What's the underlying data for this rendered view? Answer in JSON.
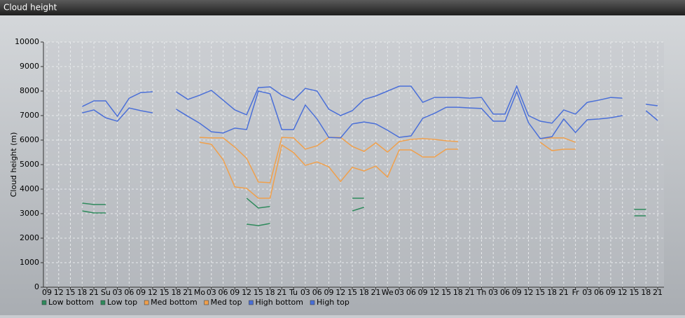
{
  "chart_data": {
    "type": "line",
    "title": "Cloud height",
    "y_label": "Cloud height (m)",
    "categories": [
      "09",
      "12",
      "15",
      "18",
      "21",
      "Su",
      "03",
      "06",
      "09",
      "12",
      "15",
      "18",
      "21",
      "Mo",
      "03",
      "06",
      "09",
      "12",
      "15",
      "18",
      "21",
      "Tu",
      "03",
      "06",
      "09",
      "12",
      "15",
      "18",
      "21",
      "We",
      "03",
      "06",
      "09",
      "12",
      "15",
      "18",
      "21",
      "Th",
      "03",
      "06",
      "09",
      "12",
      "15",
      "18",
      "21",
      "Fr",
      "03",
      "06",
      "09",
      "12",
      "15",
      "18",
      "21"
    ],
    "ylim": [
      0,
      10000
    ],
    "yticks": [
      0,
      1000,
      2000,
      3000,
      4000,
      5000,
      6000,
      7000,
      8000,
      9000,
      10000
    ],
    "grid": true,
    "series": [
      {
        "name": "Low bottom",
        "color": "#2f8a5c",
        "values": [
          null,
          null,
          null,
          3110,
          3030,
          3030,
          null,
          null,
          null,
          null,
          null,
          null,
          null,
          null,
          null,
          null,
          null,
          2570,
          2510,
          2600,
          null,
          null,
          null,
          null,
          null,
          null,
          3110,
          3260,
          null,
          null,
          null,
          null,
          null,
          null,
          null,
          null,
          null,
          null,
          null,
          null,
          null,
          null,
          null,
          null,
          null,
          null,
          null,
          null,
          null,
          null,
          2910,
          2910,
          null
        ]
      },
      {
        "name": "Low top",
        "color": "#2f8a5c",
        "values": [
          null,
          null,
          null,
          3430,
          3370,
          3370,
          null,
          null,
          null,
          null,
          null,
          null,
          null,
          null,
          null,
          null,
          null,
          3630,
          3230,
          3290,
          null,
          null,
          null,
          null,
          null,
          null,
          3630,
          3630,
          null,
          null,
          null,
          null,
          null,
          null,
          null,
          null,
          null,
          null,
          null,
          null,
          null,
          null,
          null,
          null,
          null,
          null,
          null,
          null,
          null,
          null,
          3170,
          3170,
          null
        ]
      },
      {
        "name": "Med bottom",
        "color": "#f0a04c",
        "values": [
          null,
          null,
          null,
          null,
          null,
          null,
          null,
          null,
          null,
          null,
          null,
          null,
          null,
          5910,
          5830,
          5200,
          4090,
          4030,
          3630,
          3630,
          5800,
          5490,
          4970,
          5110,
          4910,
          4310,
          4890,
          4740,
          4940,
          4490,
          5600,
          5600,
          5310,
          5310,
          5630,
          5630,
          null,
          null,
          null,
          null,
          null,
          null,
          5910,
          5570,
          5630,
          5630,
          null,
          null,
          null,
          null,
          null,
          null,
          null
        ]
      },
      {
        "name": "Med top",
        "color": "#f0a04c",
        "values": [
          null,
          null,
          null,
          null,
          null,
          null,
          null,
          null,
          null,
          null,
          null,
          null,
          null,
          6110,
          6090,
          6090,
          5710,
          5260,
          4290,
          4260,
          6110,
          6090,
          5630,
          5770,
          6110,
          6110,
          5740,
          5540,
          5890,
          5510,
          5940,
          6030,
          6060,
          6030,
          5970,
          5940,
          null,
          null,
          null,
          null,
          null,
          null,
          6060,
          6090,
          6090,
          5910,
          null,
          null,
          null,
          null,
          null,
          null,
          null
        ]
      },
      {
        "name": "High bottom",
        "color": "#4a6fd8",
        "values": [
          null,
          null,
          null,
          7110,
          7230,
          6910,
          6770,
          7310,
          7200,
          7110,
          null,
          7260,
          6970,
          6690,
          6340,
          6290,
          6490,
          6430,
          8000,
          7890,
          6430,
          6430,
          7430,
          6860,
          6110,
          6090,
          6660,
          6740,
          6660,
          6400,
          6110,
          6170,
          6890,
          7090,
          7340,
          7340,
          7310,
          7290,
          6770,
          6770,
          7970,
          6710,
          6060,
          6140,
          6860,
          6310,
          6830,
          6860,
          6910,
          7000,
          null,
          7200,
          6800
        ]
      },
      {
        "name": "High top",
        "color": "#4a6fd8",
        "values": [
          null,
          null,
          null,
          7370,
          7600,
          7600,
          6970,
          7710,
          7940,
          7970,
          null,
          7970,
          7660,
          7830,
          8030,
          7630,
          7230,
          7030,
          8140,
          8170,
          7830,
          7630,
          8110,
          8000,
          7260,
          7000,
          7200,
          7660,
          7800,
          8000,
          8200,
          8200,
          7540,
          7740,
          7740,
          7740,
          7710,
          7740,
          7060,
          7060,
          8200,
          7000,
          6770,
          6690,
          7230,
          7060,
          7540,
          7630,
          7740,
          7710,
          null,
          7460,
          7400
        ]
      }
    ]
  }
}
